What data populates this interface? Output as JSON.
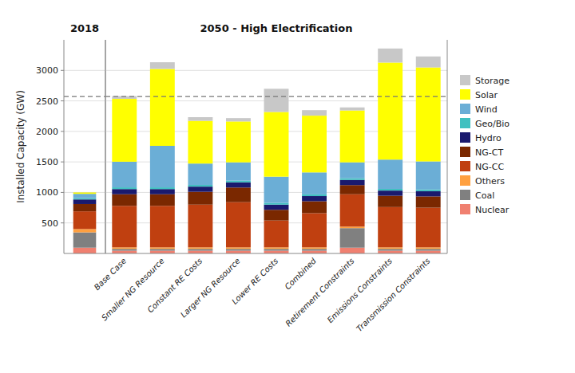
{
  "chart_data": [
    {
      "type": "bar",
      "stacked": true,
      "title": "2018",
      "ylabel": "Installed Capacity (GW)",
      "categories": [
        null
      ],
      "series": [
        {
          "color": "#f08070",
          "values": [
            95
          ]
        },
        {
          "color": "#808080",
          "values": [
            250
          ]
        },
        {
          "color": "#ffa040",
          "values": [
            55
          ]
        },
        {
          "color": "#c04010",
          "values": [
            290
          ]
        },
        {
          "color": "#7a2800",
          "values": [
            120
          ]
        },
        {
          "color": "#1a1a6e",
          "values": [
            75
          ]
        },
        {
          "color": "#40c0c0",
          "values": [
            22
          ]
        },
        {
          "color": "#6baed6",
          "values": [
            70
          ]
        },
        {
          "color": "#ffff00",
          "values": [
            25
          ]
        },
        {
          "color": "#c8c8c8",
          "values": [
            4
          ]
        }
      ],
      "reference_line": 2570,
      "ylim": [
        0,
        3500
      ],
      "yticks": [
        500,
        1000,
        1500,
        2000,
        2500,
        3000
      ],
      "grid": true,
      "tick_labels": "y"
    },
    {
      "type": "bar",
      "stacked": true,
      "title": "2050 - High Electrification",
      "categories": [
        "Base Case",
        "Smaller NG Resource",
        "Constant RE Costs",
        "Larger NG Resource",
        "Lower RE Costs",
        "Combined",
        "Retirement Constraints",
        "Emissions Constraints",
        "Transmission Constraints"
      ],
      "series": [
        {
          "name": "Nuclear",
          "color": "#f08070",
          "values": [
            45,
            45,
            45,
            45,
            45,
            45,
            95,
            45,
            45
          ]
        },
        {
          "name": "Coal",
          "color": "#808080",
          "values": [
            30,
            30,
            30,
            30,
            30,
            30,
            320,
            30,
            30
          ]
        },
        {
          "name": "Others",
          "color": "#ffa040",
          "values": [
            25,
            25,
            25,
            25,
            25,
            25,
            25,
            25,
            25
          ]
        },
        {
          "name": "NG-CC",
          "color": "#c04010",
          "values": [
            680,
            680,
            700,
            740,
            440,
            560,
            530,
            660,
            650
          ]
        },
        {
          "name": "NG-CT",
          "color": "#7a2800",
          "values": [
            190,
            190,
            210,
            240,
            175,
            195,
            150,
            185,
            185
          ]
        },
        {
          "name": "Hydro",
          "color": "#1a1a6e",
          "values": [
            85,
            85,
            85,
            85,
            85,
            85,
            85,
            85,
            85
          ]
        },
        {
          "name": "Geo/Bio",
          "color": "#40c0c0",
          "values": [
            28,
            28,
            28,
            28,
            28,
            28,
            28,
            28,
            28
          ]
        },
        {
          "name": "Wind",
          "color": "#6baed6",
          "values": [
            420,
            680,
            350,
            300,
            430,
            360,
            260,
            480,
            460
          ]
        },
        {
          "name": "Solar",
          "color": "#ffff00",
          "values": [
            1030,
            1260,
            700,
            670,
            1060,
            930,
            850,
            1590,
            1540
          ]
        },
        {
          "name": "Storage",
          "color": "#c8c8c8",
          "values": [
            45,
            110,
            60,
            55,
            380,
            90,
            50,
            230,
            180
          ]
        }
      ],
      "reference_line": 2570,
      "ylim": [
        0,
        3500
      ],
      "yticks": [
        500,
        1000,
        1500,
        2000,
        2500,
        3000
      ],
      "grid": true,
      "tick_labels": "x",
      "legend": "right"
    }
  ]
}
